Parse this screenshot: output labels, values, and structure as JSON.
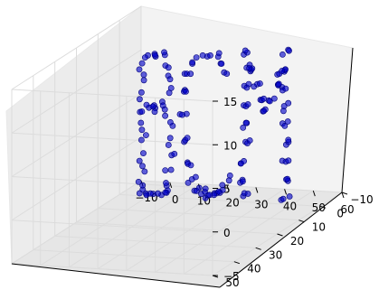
{
  "chart_data": {
    "type": "scatter",
    "projection": "3d",
    "grid": true,
    "point_color": "#0000c8",
    "x_range": [
      -10,
      60
    ],
    "y_range": [
      -10,
      50
    ],
    "z_range": [
      -5,
      15
    ],
    "x_ticks": [
      {
        "value": -10,
        "label": "−10"
      },
      {
        "value": 0,
        "label": "0"
      },
      {
        "value": 10,
        "label": "10"
      },
      {
        "value": 20,
        "label": "20"
      },
      {
        "value": 30,
        "label": "30"
      },
      {
        "value": 40,
        "label": "40"
      },
      {
        "value": 50,
        "label": "50"
      },
      {
        "value": 60,
        "label": "60"
      }
    ],
    "y_ticks": [
      {
        "value": -10,
        "label": "−10"
      },
      {
        "value": 0,
        "label": "0"
      },
      {
        "value": 10,
        "label": "10"
      },
      {
        "value": 20,
        "label": "20"
      },
      {
        "value": 30,
        "label": "30"
      },
      {
        "value": 40,
        "label": "40"
      },
      {
        "value": 50,
        "label": "50"
      }
    ],
    "z_ticks": [
      {
        "value": -5,
        "label": "−5"
      },
      {
        "value": 0,
        "label": "0"
      },
      {
        "value": 5,
        "label": "5"
      },
      {
        "value": 10,
        "label": "10"
      },
      {
        "value": 15,
        "label": "15"
      }
    ],
    "points": [
      [
        -2.0,
        -0.1,
        -4.3
      ],
      [
        -0.3,
        0.4,
        -4.8
      ],
      [
        1.5,
        1.0,
        -4.5
      ],
      [
        3.9,
        0.7,
        -4.5
      ],
      [
        5.8,
        1.6,
        -4.5
      ],
      [
        6.4,
        -0.5,
        -4.3
      ],
      [
        -2.4,
        1.3,
        -3.2
      ],
      [
        -2.1,
        -0.1,
        -1.6
      ],
      [
        -1.7,
        0.0,
        -0.1
      ],
      [
        -1.6,
        -1.1,
        1.8
      ],
      [
        -2.4,
        0.2,
        3.4
      ],
      [
        -2.5,
        -0.4,
        4.6
      ],
      [
        -2.0,
        1.3,
        6.3
      ],
      [
        -2.7,
        -1.6,
        8.0
      ],
      [
        -2.6,
        0.7,
        9.6
      ],
      [
        -1.1,
        0.0,
        10.9
      ],
      [
        1.0,
        -1.8,
        10.9
      ],
      [
        2.7,
        0.2,
        11.1
      ],
      [
        4.9,
        -1.2,
        11.1
      ],
      [
        6.7,
        -0.5,
        9.8
      ],
      [
        7.3,
        -0.4,
        8.5
      ],
      [
        6.5,
        -1.1,
        6.8
      ],
      [
        4.7,
        -0.6,
        5.4
      ],
      [
        2.2,
        0.2,
        5.5
      ],
      [
        0.0,
        0.8,
        5.6
      ],
      [
        3.0,
        1.0,
        4.9
      ],
      [
        6.2,
        0.4,
        4.4
      ],
      [
        8.0,
        -0.7,
        3.1
      ],
      [
        7.9,
        1.1,
        1.2
      ],
      [
        7.7,
        -1.9,
        -0.3
      ],
      [
        7.2,
        -1.0,
        -2.0
      ],
      [
        7.6,
        1.6,
        -3.4
      ],
      [
        -2.4,
        -0.6,
        -3.9
      ],
      [
        -1.7,
        -0.6,
        -2.3
      ],
      [
        -1.7,
        1.8,
        -0.7
      ],
      [
        -1.9,
        0.6,
        1.5
      ],
      [
        -2.5,
        -0.4,
        2.5
      ],
      [
        -1.6,
        1.7,
        4.9
      ],
      [
        -2.2,
        0.2,
        6.9
      ],
      [
        -2.9,
        -1.8,
        8.6
      ],
      [
        -1.7,
        0.6,
        10.3
      ],
      [
        0.1,
        0.3,
        11.2
      ],
      [
        1.5,
        -1.0,
        11.2
      ],
      [
        4.2,
        -1.8,
        11.3
      ],
      [
        6.0,
        0.0,
        10.1
      ],
      [
        7.2,
        0.3,
        9.0
      ],
      [
        7.3,
        -0.9,
        7.4
      ],
      [
        6.1,
        1.6,
        6.2
      ],
      [
        3.5,
        1.4,
        5.4
      ],
      [
        1.3,
        1.4,
        5.4
      ],
      [
        1.1,
        -0.7,
        5.2
      ],
      [
        5.1,
        -0.9,
        4.9
      ],
      [
        7.2,
        -0.7,
        3.5
      ],
      [
        7.6,
        -0.1,
        1.8
      ],
      [
        8.3,
        0.2,
        -0.1
      ],
      [
        6.9,
        1.3,
        -1.7
      ],
      [
        7.3,
        1.5,
        -3.1
      ],
      [
        -1.6,
        1.9,
        -4.4
      ],
      [
        0.0,
        1.1,
        -4.5
      ],
      [
        2.6,
        1.2,
        -4.5
      ],
      [
        4.9,
        -1.4,
        -4.7
      ],
      [
        6.3,
        -0.1,
        -4.5
      ],
      [
        16.8,
        0.9,
        -3.9
      ],
      [
        19.0,
        -1.0,
        -4.3
      ],
      [
        21.2,
        -0.3,
        -4.5
      ],
      [
        23.3,
        -1.7,
        -4.3
      ],
      [
        25.5,
        -0.6,
        -3.9
      ],
      [
        27.1,
        -1.4,
        -2.9
      ],
      [
        15.1,
        -0.2,
        -2.8
      ],
      [
        13.9,
        0.1,
        -1.0
      ],
      [
        12.5,
        -1.5,
        1.7
      ],
      [
        12.0,
        0.2,
        4.6
      ],
      [
        12.7,
        -0.1,
        7.4
      ],
      [
        13.8,
        0.5,
        9.4
      ],
      [
        15.6,
        0.3,
        10.7
      ],
      [
        18.1,
        -1.2,
        11.3
      ],
      [
        20.9,
        0.4,
        11.5
      ],
      [
        23.7,
        -0.9,
        11.3
      ],
      [
        25.7,
        0.6,
        10.8
      ],
      [
        27.3,
        1.1,
        9.9
      ],
      [
        16.5,
        -1.7,
        -4.0
      ],
      [
        18.9,
        -1.4,
        -4.0
      ],
      [
        21.6,
        1.1,
        -4.3
      ],
      [
        23.2,
        0.1,
        -4.2
      ],
      [
        25.1,
        0.1,
        -4.1
      ],
      [
        27.6,
        -1.2,
        -2.3
      ],
      [
        15.2,
        1.7,
        -2.9
      ],
      [
        13.8,
        -1.4,
        -1.4
      ],
      [
        12.6,
        -0.4,
        1.6
      ],
      [
        11.9,
        1.1,
        4.8
      ],
      [
        12.3,
        -0.2,
        7.2
      ],
      [
        13.8,
        -1.3,
        9.1
      ],
      [
        15.8,
        0.6,
        10.6
      ],
      [
        17.9,
        1.5,
        11.5
      ],
      [
        20.5,
        -1.5,
        11.3
      ],
      [
        23.5,
        -1.6,
        11.6
      ],
      [
        26.0,
        0.6,
        10.8
      ],
      [
        27.9,
        0.7,
        9.7
      ],
      [
        16.7,
        -0.2,
        -4.1
      ],
      [
        18.4,
        -0.1,
        -4.4
      ],
      [
        21.0,
        1.4,
        -4.6
      ],
      [
        23.0,
        0.1,
        -4.4
      ],
      [
        25.2,
        1.7,
        -3.9
      ],
      [
        26.8,
        1.3,
        -3.0
      ],
      [
        15.2,
        -1.8,
        -2.8
      ],
      [
        14.0,
        0.4,
        -0.8
      ],
      [
        12.6,
        0.1,
        1.5
      ],
      [
        12.1,
        -1.7,
        4.4
      ],
      [
        12.9,
        -0.3,
        7.2
      ],
      [
        13.6,
        1.2,
        9.5
      ],
      [
        33.7,
        -1.4,
        -4.3
      ],
      [
        33.7,
        1.0,
        -2.5
      ],
      [
        33.5,
        0.2,
        -0.3
      ],
      [
        34.2,
        -1.6,
        1.8
      ],
      [
        34.1,
        -0.3,
        4.0
      ],
      [
        33.9,
        0.8,
        6.2
      ],
      [
        33.6,
        -1.9,
        8.2
      ],
      [
        33.5,
        -1.1,
        10.2
      ],
      [
        34.3,
        -0.3,
        12.1
      ],
      [
        47.9,
        -1.8,
        -4.4
      ],
      [
        47.6,
        -1.2,
        -2.3
      ],
      [
        47.8,
        1.4,
        0.2
      ],
      [
        48.2,
        -0.9,
        2.0
      ],
      [
        48.1,
        0.7,
        4.1
      ],
      [
        48.5,
        1.8,
        6.0
      ],
      [
        47.5,
        0.9,
        8.2
      ],
      [
        47.5,
        -0.4,
        10.4
      ],
      [
        48.1,
        -1.3,
        12.4
      ],
      [
        36.0,
        -0.3,
        10.3
      ],
      [
        37.8,
        1.3,
        8.5
      ],
      [
        39.6,
        -0.9,
        6.8
      ],
      [
        40.4,
        0.5,
        5.6
      ],
      [
        42.5,
        0.6,
        6.9
      ],
      [
        44.5,
        -1.0,
        8.5
      ],
      [
        46.0,
        0.4,
        10.0
      ],
      [
        33.8,
        0.9,
        -4.2
      ],
      [
        33.5,
        1.9,
        -2.5
      ],
      [
        33.7,
        1.9,
        -0.3
      ],
      [
        34.4,
        -0.2,
        1.7
      ],
      [
        33.8,
        -0.4,
        4.0
      ],
      [
        34.6,
        0.7,
        6.1
      ],
      [
        34.3,
        -0.1,
        8.1
      ],
      [
        34.1,
        -1.5,
        10.1
      ],
      [
        33.8,
        0.6,
        12.0
      ],
      [
        47.4,
        1.4,
        -4.3
      ],
      [
        47.9,
        -0.3,
        -2.2
      ],
      [
        48.5,
        0.7,
        0.0
      ],
      [
        48.0,
        -1.1,
        2.2
      ],
      [
        47.5,
        0.9,
        4.4
      ],
      [
        47.9,
        -1.2,
        6.4
      ],
      [
        47.5,
        1.1,
        8.6
      ],
      [
        48.2,
        0.7,
        10.5
      ],
      [
        48.2,
        -0.8,
        12.6
      ],
      [
        36.4,
        1.0,
        10.2
      ],
      [
        38.2,
        -1.0,
        8.5
      ],
      [
        39.2,
        -0.5,
        6.7
      ],
      [
        41.1,
        0.4,
        5.8
      ],
      [
        42.3,
        -0.1,
        6.7
      ],
      [
        44.4,
        -1.5,
        8.5
      ],
      [
        45.8,
        1.0,
        10.0
      ],
      [
        33.6,
        0.1,
        -4.0
      ],
      [
        33.7,
        1.1,
        -2.3
      ],
      [
        33.7,
        1.8,
        -0.3
      ],
      [
        34.0,
        0.1,
        1.9
      ],
      [
        34.4,
        1.8,
        3.8
      ],
      [
        34.3,
        -0.6,
        6.1
      ],
      [
        33.5,
        0.0,
        8.3
      ],
      [
        34.3,
        -1.4,
        10.5
      ],
      [
        33.6,
        -0.3,
        12.3
      ],
      [
        47.5,
        0.6,
        -4.3
      ],
      [
        48.3,
        -0.5,
        -2.4
      ],
      [
        47.9,
        -1.3,
        -0.2
      ],
      [
        48.4,
        0.4,
        1.9
      ],
      [
        48.2,
        -0.6,
        4.4
      ],
      [
        48.5,
        1.5,
        6.5
      ],
      [
        48.5,
        0.8,
        8.4
      ],
      [
        47.8,
        0.5,
        10.3
      ],
      [
        47.5,
        0.9,
        12.3
      ],
      [
        35.9,
        0.0,
        10.2
      ],
      [
        38.1,
        0.1,
        8.6
      ],
      [
        39.5,
        0.5,
        6.9
      ],
      [
        40.5,
        0.3,
        5.6
      ],
      [
        42.9,
        -1.4,
        6.8
      ],
      [
        44.4,
        -1.2,
        8.4
      ],
      [
        46.3,
        -0.4,
        10.2
      ]
    ]
  }
}
